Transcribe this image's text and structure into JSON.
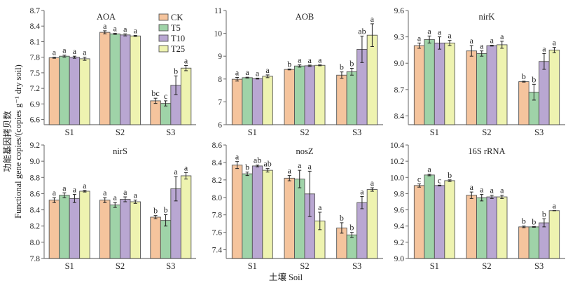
{
  "chart_data": [
    {
      "type": "bar",
      "title": "AOA",
      "categories": [
        "S1",
        "S2",
        "S3"
      ],
      "ylim": [
        6.5,
        8.7
      ],
      "yticks": [
        "6.6",
        "6.9",
        "7.2",
        "7.5",
        "7.8",
        "8.1",
        "8.4",
        "8.7"
      ],
      "series": [
        {
          "name": "CK",
          "values": [
            7.79,
            8.28,
            6.96
          ],
          "errors": [
            0.01,
            0.03,
            0.05
          ],
          "letters": [
            "a",
            "a",
            "bc"
          ]
        },
        {
          "name": "T5",
          "values": [
            7.82,
            8.25,
            6.91
          ],
          "errors": [
            0.02,
            0.01,
            0.05
          ],
          "letters": [
            "a",
            "a",
            "c"
          ]
        },
        {
          "name": "T10",
          "values": [
            7.8,
            8.23,
            7.26
          ],
          "errors": [
            0.02,
            0.02,
            0.18
          ],
          "letters": [
            "a",
            "a",
            "b"
          ]
        },
        {
          "name": "T25",
          "values": [
            7.77,
            8.21,
            7.59
          ],
          "errors": [
            0.03,
            0.01,
            0.05
          ],
          "letters": [
            "a",
            "a",
            "a"
          ]
        }
      ]
    },
    {
      "type": "bar",
      "title": "AOB",
      "categories": [
        "S1",
        "S2",
        "S3"
      ],
      "ylim": [
        6,
        11
      ],
      "yticks": [
        "6",
        "7",
        "8",
        "9",
        "10",
        "11"
      ],
      "series": [
        {
          "name": "CK",
          "values": [
            7.99,
            8.42,
            8.17
          ],
          "errors": [
            0.08,
            0.02,
            0.14
          ],
          "letters": [
            "a",
            "b",
            "b"
          ]
        },
        {
          "name": "T5",
          "values": [
            8.06,
            8.57,
            8.32
          ],
          "errors": [
            0.02,
            0.05,
            0.15
          ],
          "letters": [
            "a",
            "a",
            "b"
          ]
        },
        {
          "name": "T10",
          "values": [
            8.02,
            8.58,
            9.3
          ],
          "errors": [
            0.02,
            0.03,
            0.58
          ],
          "letters": [
            "a",
            "a",
            "ab"
          ]
        },
        {
          "name": "T25",
          "values": [
            8.12,
            8.6,
            9.92
          ],
          "errors": [
            0.06,
            0.02,
            0.5
          ],
          "letters": [
            "a",
            "a",
            "a"
          ]
        }
      ]
    },
    {
      "type": "bar",
      "title": "nirK",
      "categories": [
        "S1",
        "S2",
        "S3"
      ],
      "ylim": [
        8.3,
        9.6
      ],
      "yticks": [
        "8.4",
        "8.7",
        "9.0",
        "9.3",
        "9.6"
      ],
      "series": [
        {
          "name": "CK",
          "values": [
            9.2,
            9.14,
            8.79
          ],
          "errors": [
            0.03,
            0.06,
            0.005
          ],
          "letters": [
            "a",
            "a",
            "b"
          ]
        },
        {
          "name": "T5",
          "values": [
            9.27,
            9.11,
            8.67
          ],
          "errors": [
            0.04,
            0.03,
            0.09
          ],
          "letters": [
            "a",
            "a",
            "b"
          ]
        },
        {
          "name": "T10",
          "values": [
            9.23,
            9.2,
            9.02
          ],
          "errors": [
            0.07,
            0.005,
            0.09
          ],
          "letters": [
            "a",
            "a",
            "a"
          ]
        },
        {
          "name": "T25",
          "values": [
            9.23,
            9.21,
            9.15
          ],
          "errors": [
            0.03,
            0.04,
            0.03
          ],
          "letters": [
            "a",
            "a",
            "a"
          ]
        }
      ]
    },
    {
      "type": "bar",
      "title": "nirS",
      "categories": [
        "S1",
        "S2",
        "S3"
      ],
      "ylim": [
        7.8,
        9.2
      ],
      "yticks": [
        "7.8",
        "8.0",
        "8.2",
        "8.4",
        "8.6",
        "8.8",
        "9.0",
        "9.2"
      ],
      "series": [
        {
          "name": "CK",
          "values": [
            8.52,
            8.52,
            8.31
          ],
          "errors": [
            0.03,
            0.03,
            0.02
          ],
          "letters": [
            "a",
            "a",
            "b"
          ]
        },
        {
          "name": "T5",
          "values": [
            8.58,
            8.46,
            8.27
          ],
          "errors": [
            0.03,
            0.03,
            0.07
          ],
          "letters": [
            "a",
            "a",
            "b"
          ]
        },
        {
          "name": "T10",
          "values": [
            8.54,
            8.53,
            8.66
          ],
          "errors": [
            0.05,
            0.03,
            0.15
          ],
          "letters": [
            "a",
            "a",
            "a"
          ]
        },
        {
          "name": "T25",
          "values": [
            8.63,
            8.5,
            8.82
          ],
          "errors": [
            0.01,
            0.02,
            0.04
          ],
          "letters": [
            "a",
            "a",
            "a"
          ]
        }
      ]
    },
    {
      "type": "bar",
      "title": "nosZ",
      "categories": [
        "S1",
        "S2",
        "S3"
      ],
      "ylim": [
        7.3,
        8.6
      ],
      "yticks": [
        "7.4",
        "7.6",
        "7.8",
        "8.0",
        "8.2",
        "8.4",
        "8.6"
      ],
      "series": [
        {
          "name": "CK",
          "values": [
            8.37,
            8.22,
            7.65
          ],
          "errors": [
            0.04,
            0.03,
            0.06
          ],
          "letters": [
            "a",
            "a",
            "b"
          ]
        },
        {
          "name": "T5",
          "values": [
            8.27,
            8.21,
            7.57
          ],
          "errors": [
            0.02,
            0.1,
            0.03
          ],
          "letters": [
            "b",
            "a",
            "b"
          ]
        },
        {
          "name": "T10",
          "values": [
            8.36,
            8.04,
            7.94
          ],
          "errors": [
            0.01,
            0.26,
            0.07
          ],
          "letters": [
            "ab",
            "",
            "a"
          ]
        },
        {
          "name": "T25",
          "values": [
            8.31,
            7.73,
            8.09
          ],
          "errors": [
            0.02,
            0.1,
            0.02
          ],
          "letters": [
            "ab",
            "a",
            "a"
          ]
        }
      ],
      "extra_letters_note": "S2 T10 letter 'a' above error bar",
      "s2_t10_letter": "a"
    },
    {
      "type": "bar",
      "title": "16S rRNA",
      "categories": [
        "S1",
        "S2",
        "S3"
      ],
      "ylim": [
        9.0,
        10.4
      ],
      "yticks": [
        "9.0",
        "9.2",
        "9.4",
        "9.6",
        "9.8",
        "10.0",
        "10.2",
        "10.4"
      ],
      "series": [
        {
          "name": "CK",
          "values": [
            9.9,
            9.78,
            9.39
          ],
          "errors": [
            0.02,
            0.04,
            0.01
          ],
          "letters": [
            "c",
            "a",
            "b"
          ]
        },
        {
          "name": "T5",
          "values": [
            10.03,
            9.75,
            9.39
          ],
          "errors": [
            0.01,
            0.04,
            0.005
          ],
          "letters": [
            "a",
            "a",
            "b"
          ]
        },
        {
          "name": "T10",
          "values": [
            9.9,
            9.76,
            9.44
          ],
          "errors": [
            0.005,
            0.02,
            0.05
          ],
          "letters": [
            "c",
            "a",
            "b"
          ]
        },
        {
          "name": "T25",
          "values": [
            9.96,
            9.76,
            9.59
          ],
          "errors": [
            0.01,
            0.02,
            0.0
          ],
          "letters": [
            "b",
            "a",
            "a"
          ]
        }
      ]
    }
  ],
  "legend": [
    {
      "name": "CK",
      "color": "#f5c49d"
    },
    {
      "name": "T5",
      "color": "#9fd3a8"
    },
    {
      "name": "T10",
      "color": "#b9a7d2"
    },
    {
      "name": "T25",
      "color": "#eef3b0"
    }
  ],
  "legend_position": "top-right of first panel",
  "ylabel_cn": "功能基因拷贝数",
  "ylabel_en": "Functional gene copies/(copies g⁻¹ dry soil)",
  "xlabel": "土壤 Soil"
}
